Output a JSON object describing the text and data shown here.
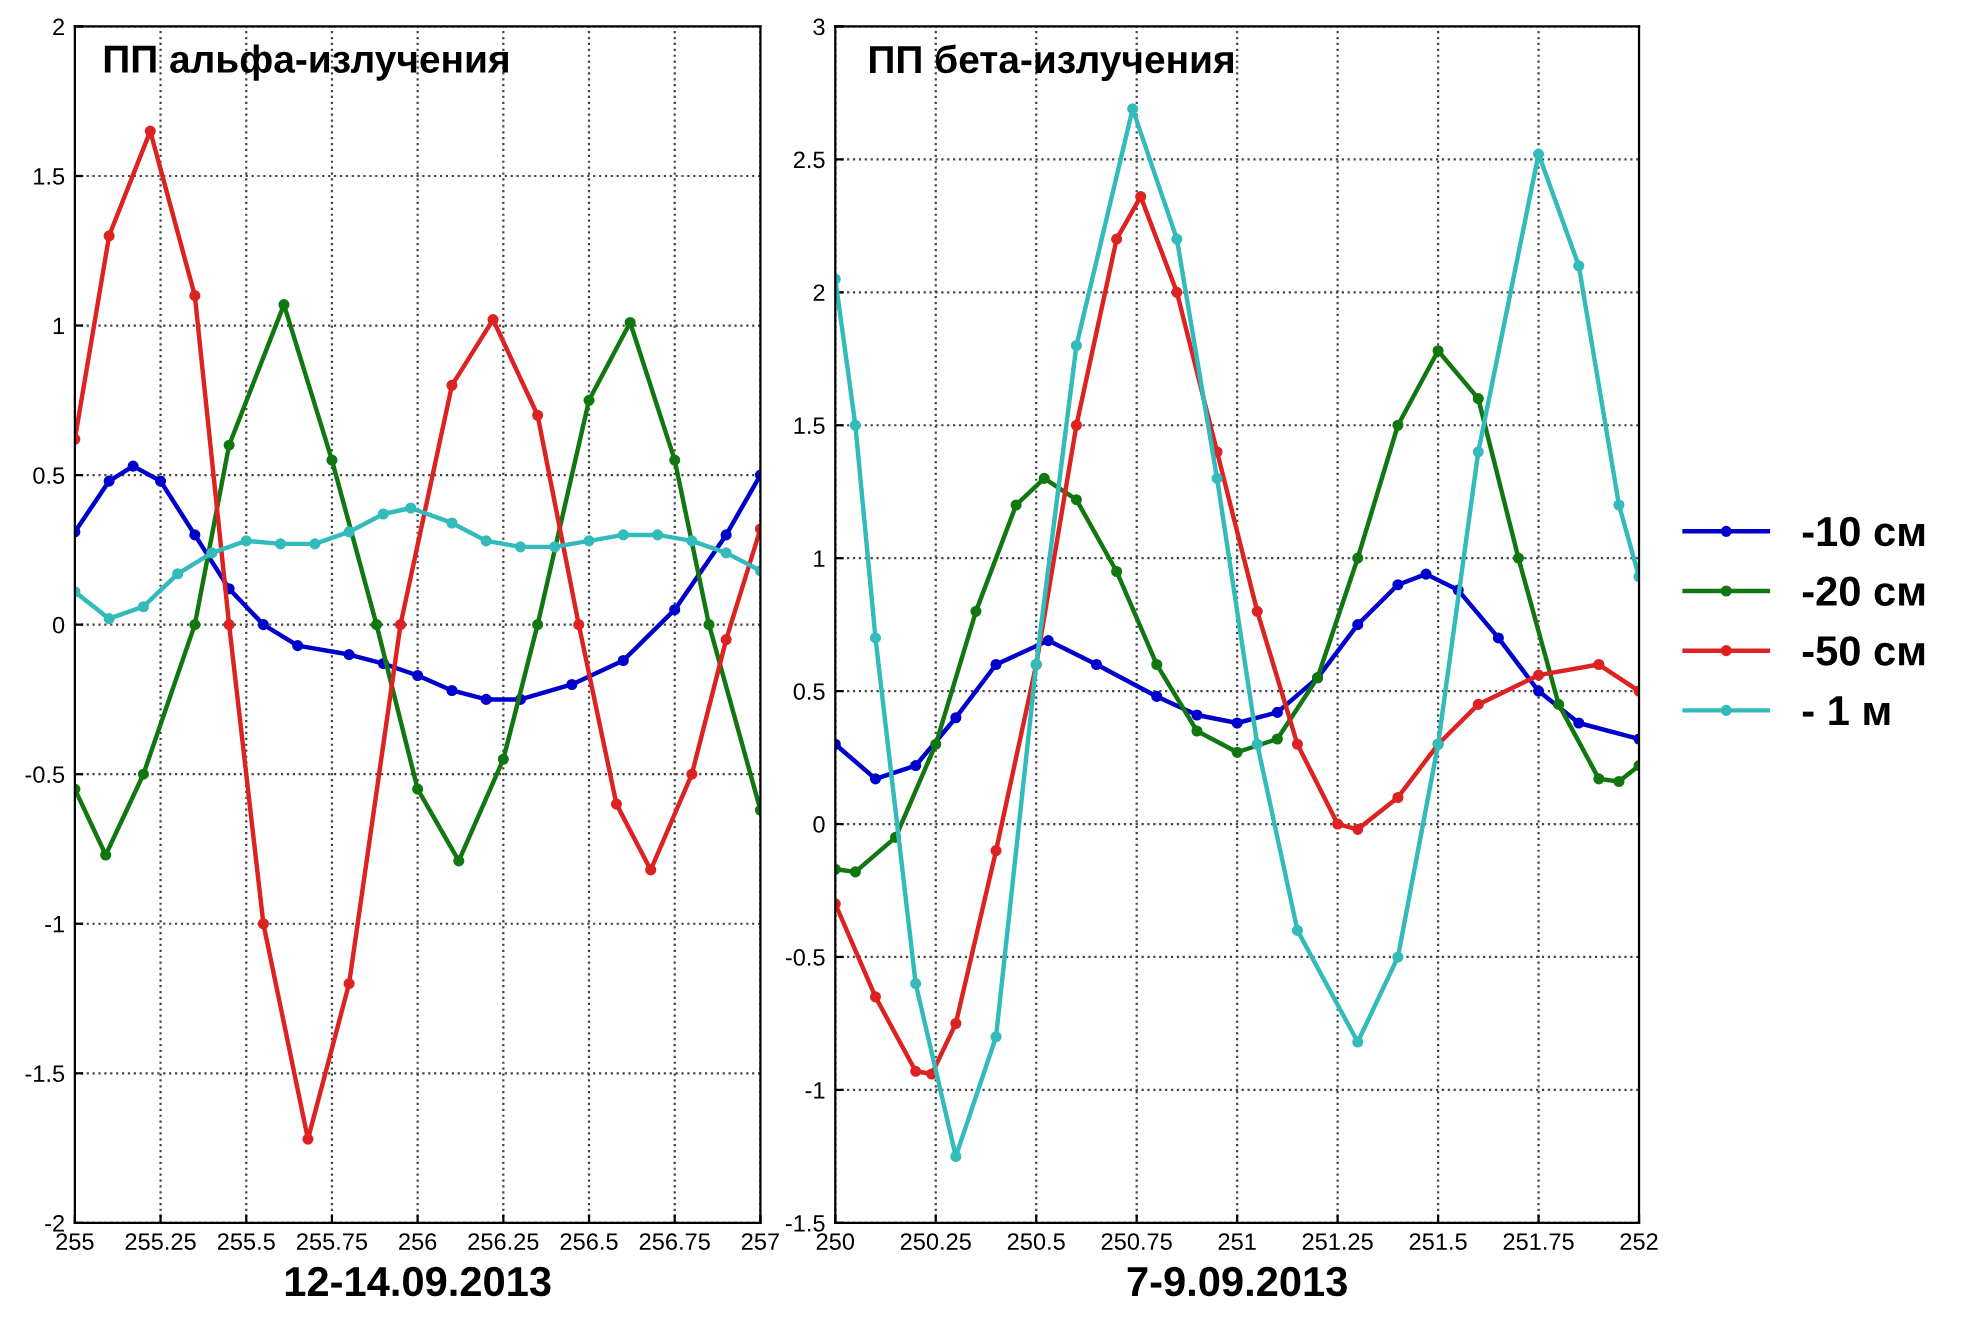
{
  "chart_data": [
    {
      "type": "line",
      "title": "ПП альфа-излучения",
      "xlabel": "12-14.09.2013",
      "xlim": [
        255,
        257
      ],
      "ylim": [
        -2,
        2
      ],
      "xticks": [
        255,
        255.25,
        255.5,
        255.75,
        256,
        256.25,
        256.5,
        256.75,
        257
      ],
      "yticks": [
        -2,
        -1.5,
        -1,
        -0.5,
        0,
        0.5,
        1,
        1.5,
        2
      ],
      "grid": true,
      "marker": "circle",
      "line_style": "solid",
      "series": [
        {
          "color": "#0000cc",
          "x": [
            255,
            255.1,
            255.17,
            255.25,
            255.35,
            255.45,
            255.55,
            255.65,
            255.8,
            255.9,
            256,
            256.1,
            256.2,
            256.3,
            256.45,
            256.6,
            256.75,
            256.9,
            257
          ],
          "values": [
            0.31,
            0.48,
            0.53,
            0.48,
            0.3,
            0.12,
            0.0,
            -0.07,
            -0.1,
            -0.13,
            -0.17,
            -0.22,
            -0.25,
            -0.25,
            -0.2,
            -0.12,
            0.05,
            0.3,
            0.5
          ]
        },
        {
          "color": "#117711",
          "x": [
            255,
            255.09,
            255.2,
            255.35,
            255.45,
            255.61,
            255.75,
            255.88,
            256,
            256.12,
            256.25,
            256.35,
            256.5,
            256.62,
            256.75,
            256.85,
            257
          ],
          "values": [
            -0.55,
            -0.77,
            -0.5,
            0.0,
            0.6,
            1.07,
            0.55,
            0.0,
            -0.55,
            -0.79,
            -0.45,
            0.0,
            0.75,
            1.01,
            0.55,
            0.0,
            -0.62
          ]
        },
        {
          "color": "#dd2222",
          "x": [
            255,
            255.1,
            255.22,
            255.35,
            255.45,
            255.55,
            255.68,
            255.8,
            255.95,
            256.1,
            256.22,
            256.35,
            256.47,
            256.58,
            256.68,
            256.8,
            256.9,
            257
          ],
          "values": [
            0.62,
            1.3,
            1.65,
            1.1,
            0.0,
            -1.0,
            -1.72,
            -1.2,
            0.0,
            0.8,
            1.02,
            0.7,
            0.0,
            -0.6,
            -0.82,
            -0.5,
            -0.05,
            0.32
          ]
        },
        {
          "color": "#33bbbb",
          "x": [
            255,
            255.1,
            255.2,
            255.3,
            255.4,
            255.5,
            255.6,
            255.7,
            255.8,
            255.9,
            255.98,
            256.1,
            256.2,
            256.3,
            256.4,
            256.5,
            256.6,
            256.7,
            256.8,
            256.9,
            257
          ],
          "values": [
            0.11,
            0.02,
            0.06,
            0.17,
            0.24,
            0.28,
            0.27,
            0.27,
            0.31,
            0.37,
            0.39,
            0.34,
            0.28,
            0.26,
            0.26,
            0.28,
            0.3,
            0.3,
            0.28,
            0.24,
            0.18
          ]
        }
      ]
    },
    {
      "type": "line",
      "title": "ПП бета-излучения",
      "xlabel": "7-9.09.2013",
      "xlim": [
        250,
        252
      ],
      "ylim": [
        -1.5,
        3
      ],
      "xticks": [
        250,
        250.25,
        250.5,
        250.75,
        251,
        251.25,
        251.5,
        251.75,
        252
      ],
      "yticks": [
        -1.5,
        -1,
        -0.5,
        0,
        0.5,
        1,
        1.5,
        2,
        2.5,
        3
      ],
      "grid": true,
      "marker": "circle",
      "line_style": "solid",
      "legend": "right",
      "series": [
        {
          "name": "-10 см",
          "color": "#0000cc",
          "x": [
            250,
            250.1,
            250.2,
            250.3,
            250.4,
            250.53,
            250.65,
            250.8,
            250.9,
            251,
            251.1,
            251.2,
            251.3,
            251.4,
            251.47,
            251.55,
            251.65,
            251.75,
            251.85,
            252
          ],
          "values": [
            0.3,
            0.17,
            0.22,
            0.4,
            0.6,
            0.69,
            0.6,
            0.48,
            0.41,
            0.38,
            0.42,
            0.55,
            0.75,
            0.9,
            0.94,
            0.88,
            0.7,
            0.5,
            0.38,
            0.32
          ]
        },
        {
          "name": "-20 см",
          "color": "#117711",
          "x": [
            250,
            250.05,
            250.15,
            250.25,
            250.35,
            250.45,
            250.52,
            250.6,
            250.7,
            250.8,
            250.9,
            251,
            251.1,
            251.2,
            251.3,
            251.4,
            251.5,
            251.6,
            251.7,
            251.8,
            251.9,
            251.95,
            252
          ],
          "values": [
            -0.17,
            -0.18,
            -0.05,
            0.3,
            0.8,
            1.2,
            1.3,
            1.22,
            0.95,
            0.6,
            0.35,
            0.27,
            0.32,
            0.55,
            1.0,
            1.5,
            1.78,
            1.6,
            1.0,
            0.45,
            0.17,
            0.16,
            0.22
          ]
        },
        {
          "name": "-50 см",
          "color": "#dd2222",
          "x": [
            250,
            250.1,
            250.2,
            250.24,
            250.3,
            250.4,
            250.5,
            250.6,
            250.7,
            250.76,
            250.85,
            250.95,
            251.05,
            251.15,
            251.25,
            251.3,
            251.4,
            251.5,
            251.6,
            251.75,
            251.9,
            252
          ],
          "values": [
            -0.3,
            -0.65,
            -0.93,
            -0.94,
            -0.75,
            -0.1,
            0.6,
            1.5,
            2.2,
            2.36,
            2.0,
            1.4,
            0.8,
            0.3,
            0.0,
            -0.02,
            0.1,
            0.3,
            0.45,
            0.56,
            0.6,
            0.5
          ]
        },
        {
          "name": "- 1 м",
          "color": "#33bbbb",
          "x": [
            250,
            250.05,
            250.1,
            250.2,
            250.3,
            250.4,
            250.5,
            250.6,
            250.74,
            250.85,
            250.95,
            251.05,
            251.15,
            251.3,
            251.4,
            251.5,
            251.6,
            251.75,
            251.85,
            251.95,
            252
          ],
          "values": [
            2.05,
            1.5,
            0.7,
            -0.6,
            -1.25,
            -0.8,
            0.6,
            1.8,
            2.69,
            2.2,
            1.3,
            0.3,
            -0.4,
            -0.82,
            -0.5,
            0.3,
            1.4,
            2.52,
            2.1,
            1.2,
            0.93
          ]
        }
      ]
    }
  ]
}
